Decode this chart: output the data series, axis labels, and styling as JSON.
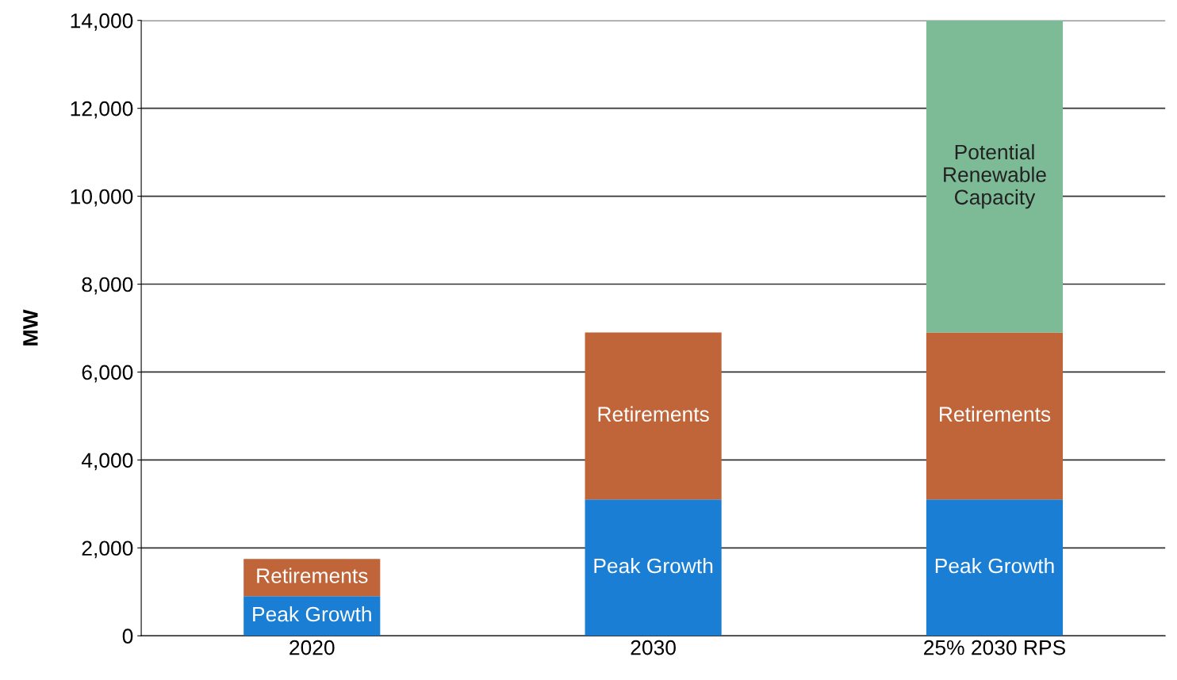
{
  "chart_data": {
    "type": "bar",
    "stacked": true,
    "ylabel": "MW",
    "categories": [
      "2020",
      "2030",
      "25% 2030 RPS"
    ],
    "series": [
      {
        "name": "Peak Growth",
        "color": "#1a7fd4",
        "values": [
          900,
          3100,
          3100
        ]
      },
      {
        "name": "Retirements",
        "color": "#c0653a",
        "values": [
          850,
          3800,
          3800
        ]
      },
      {
        "name": "Potential\nRenewable\nCapacity",
        "color": "#7dbb97",
        "values": [
          null,
          null,
          7100
        ]
      }
    ],
    "ylim": [
      0,
      14000
    ],
    "yticks": [
      0,
      {
        "value": 2000,
        "label": "2,000"
      },
      {
        "value": 4000,
        "label": "4,000"
      },
      {
        "value": 6000,
        "label": "6,000"
      },
      {
        "value": 8000,
        "label": "8,000"
      },
      {
        "value": 10000,
        "label": "10,000"
      },
      {
        "value": 12000,
        "label": "12,000"
      },
      {
        "value": 14000,
        "label": "14,000"
      }
    ],
    "grid": "y",
    "legend": false
  }
}
